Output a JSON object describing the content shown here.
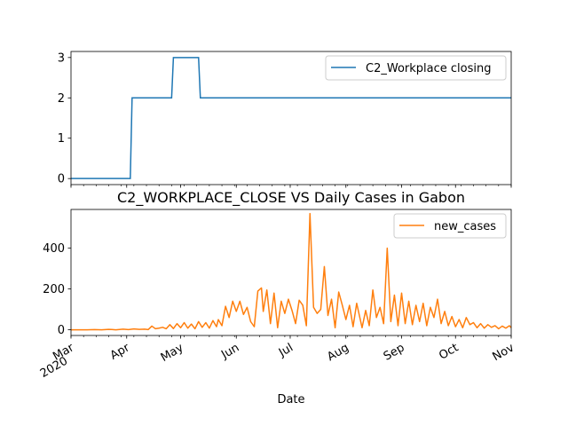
{
  "chart_data": [
    {
      "type": "line",
      "title": "",
      "xlabel": "",
      "ylabel": "",
      "xlim": [
        "2020-03-01",
        "2020-11-01"
      ],
      "ylim": [
        -0.15,
        3.15
      ],
      "yticks": [
        0,
        1,
        2,
        3
      ],
      "grid": false,
      "legend_loc": "upper right",
      "series": [
        {
          "name": "C2_Workplace closing",
          "color": "#1f77b4",
          "step_points": [
            [
              "2020-03-01",
              0
            ],
            [
              "2020-04-03",
              0
            ],
            [
              "2020-04-04",
              2
            ],
            [
              "2020-04-26",
              2
            ],
            [
              "2020-04-27",
              3
            ],
            [
              "2020-05-11",
              3
            ],
            [
              "2020-05-12",
              2
            ],
            [
              "2020-11-01",
              2
            ]
          ]
        }
      ]
    },
    {
      "type": "line",
      "title": "C2_WORKPLACE_CLOSE VS Daily Cases in Gabon",
      "xlabel": "Date",
      "ylabel": "",
      "xlim": [
        "2020-03-01",
        "2020-11-01"
      ],
      "ylim": [
        -28,
        590
      ],
      "yticks": [
        0,
        200,
        400
      ],
      "xticks": [
        {
          "date": "2020-03-01",
          "label": "Mar",
          "sublabel": "2020"
        },
        {
          "date": "2020-04-01",
          "label": "Apr"
        },
        {
          "date": "2020-05-01",
          "label": "May"
        },
        {
          "date": "2020-06-01",
          "label": "Jun"
        },
        {
          "date": "2020-07-01",
          "label": "Jul"
        },
        {
          "date": "2020-08-01",
          "label": "Aug"
        },
        {
          "date": "2020-09-01",
          "label": "Sep"
        },
        {
          "date": "2020-10-01",
          "label": "Oct"
        },
        {
          "date": "2020-11-01",
          "label": "Nov"
        }
      ],
      "grid": false,
      "legend_loc": "upper right",
      "series": [
        {
          "name": "new_cases",
          "color": "#ff7f0e",
          "points": [
            [
              "2020-03-01",
              0
            ],
            [
              "2020-03-10",
              0
            ],
            [
              "2020-03-14",
              1
            ],
            [
              "2020-03-18",
              0
            ],
            [
              "2020-03-22",
              2
            ],
            [
              "2020-03-26",
              0
            ],
            [
              "2020-03-30",
              3
            ],
            [
              "2020-04-02",
              1
            ],
            [
              "2020-04-05",
              4
            ],
            [
              "2020-04-08",
              2
            ],
            [
              "2020-04-11",
              3
            ],
            [
              "2020-04-13",
              1
            ],
            [
              "2020-04-15",
              18
            ],
            [
              "2020-04-17",
              5
            ],
            [
              "2020-04-19",
              8
            ],
            [
              "2020-04-21",
              12
            ],
            [
              "2020-04-23",
              5
            ],
            [
              "2020-04-25",
              25
            ],
            [
              "2020-04-27",
              6
            ],
            [
              "2020-04-29",
              30
            ],
            [
              "2020-05-01",
              10
            ],
            [
              "2020-05-03",
              35
            ],
            [
              "2020-05-05",
              8
            ],
            [
              "2020-05-07",
              28
            ],
            [
              "2020-05-09",
              5
            ],
            [
              "2020-05-11",
              40
            ],
            [
              "2020-05-13",
              12
            ],
            [
              "2020-05-15",
              35
            ],
            [
              "2020-05-17",
              8
            ],
            [
              "2020-05-19",
              45
            ],
            [
              "2020-05-21",
              15
            ],
            [
              "2020-05-22",
              50
            ],
            [
              "2020-05-24",
              20
            ],
            [
              "2020-05-26",
              115
            ],
            [
              "2020-05-28",
              60
            ],
            [
              "2020-05-30",
              140
            ],
            [
              "2020-06-01",
              90
            ],
            [
              "2020-06-03",
              140
            ],
            [
              "2020-06-05",
              75
            ],
            [
              "2020-06-07",
              110
            ],
            [
              "2020-06-09",
              40
            ],
            [
              "2020-06-11",
              15
            ],
            [
              "2020-06-13",
              190
            ],
            [
              "2020-06-15",
              205
            ],
            [
              "2020-06-16",
              90
            ],
            [
              "2020-06-18",
              195
            ],
            [
              "2020-06-20",
              30
            ],
            [
              "2020-06-22",
              180
            ],
            [
              "2020-06-24",
              10
            ],
            [
              "2020-06-26",
              140
            ],
            [
              "2020-06-28",
              80
            ],
            [
              "2020-06-30",
              150
            ],
            [
              "2020-07-02",
              95
            ],
            [
              "2020-07-04",
              30
            ],
            [
              "2020-07-06",
              145
            ],
            [
              "2020-07-08",
              120
            ],
            [
              "2020-07-10",
              20
            ],
            [
              "2020-07-12",
              570
            ],
            [
              "2020-07-14",
              110
            ],
            [
              "2020-07-16",
              80
            ],
            [
              "2020-07-18",
              100
            ],
            [
              "2020-07-20",
              310
            ],
            [
              "2020-07-22",
              70
            ],
            [
              "2020-07-24",
              150
            ],
            [
              "2020-07-26",
              10
            ],
            [
              "2020-07-28",
              185
            ],
            [
              "2020-07-30",
              120
            ],
            [
              "2020-08-01",
              50
            ],
            [
              "2020-08-03",
              120
            ],
            [
              "2020-08-05",
              15
            ],
            [
              "2020-08-07",
              130
            ],
            [
              "2020-08-08",
              90
            ],
            [
              "2020-08-10",
              10
            ],
            [
              "2020-08-12",
              95
            ],
            [
              "2020-08-14",
              20
            ],
            [
              "2020-08-16",
              195
            ],
            [
              "2020-08-18",
              60
            ],
            [
              "2020-08-20",
              110
            ],
            [
              "2020-08-22",
              30
            ],
            [
              "2020-08-24",
              400
            ],
            [
              "2020-08-26",
              40
            ],
            [
              "2020-08-28",
              170
            ],
            [
              "2020-08-30",
              20
            ],
            [
              "2020-09-01",
              180
            ],
            [
              "2020-09-03",
              30
            ],
            [
              "2020-09-05",
              140
            ],
            [
              "2020-09-07",
              25
            ],
            [
              "2020-09-09",
              120
            ],
            [
              "2020-09-11",
              40
            ],
            [
              "2020-09-13",
              130
            ],
            [
              "2020-09-15",
              20
            ],
            [
              "2020-09-17",
              110
            ],
            [
              "2020-09-19",
              60
            ],
            [
              "2020-09-21",
              150
            ],
            [
              "2020-09-23",
              30
            ],
            [
              "2020-09-25",
              90
            ],
            [
              "2020-09-27",
              20
            ],
            [
              "2020-09-29",
              65
            ],
            [
              "2020-10-01",
              15
            ],
            [
              "2020-10-03",
              50
            ],
            [
              "2020-10-05",
              10
            ],
            [
              "2020-10-07",
              60
            ],
            [
              "2020-10-09",
              25
            ],
            [
              "2020-10-11",
              35
            ],
            [
              "2020-10-13",
              10
            ],
            [
              "2020-10-15",
              30
            ],
            [
              "2020-10-17",
              8
            ],
            [
              "2020-10-19",
              25
            ],
            [
              "2020-10-21",
              12
            ],
            [
              "2020-10-23",
              20
            ],
            [
              "2020-10-25",
              5
            ],
            [
              "2020-10-27",
              18
            ],
            [
              "2020-10-29",
              8
            ],
            [
              "2020-10-31",
              20
            ],
            [
              "2020-11-01",
              10
            ]
          ]
        }
      ]
    }
  ]
}
